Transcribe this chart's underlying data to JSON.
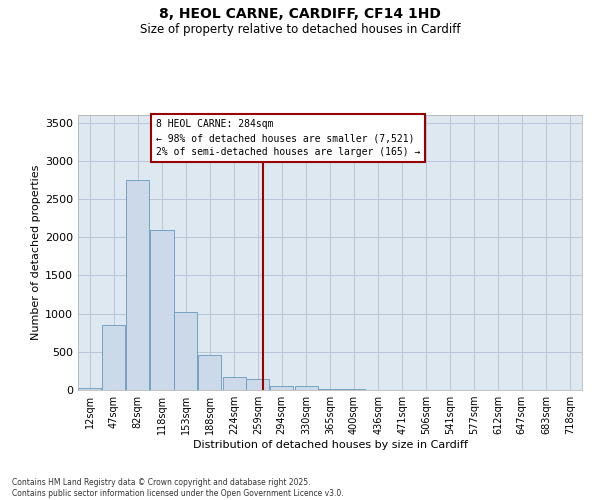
{
  "title_line1": "8, HEOL CARNE, CARDIFF, CF14 1HD",
  "title_line2": "Size of property relative to detached houses in Cardiff",
  "xlabel": "Distribution of detached houses by size in Cardiff",
  "ylabel": "Number of detached properties",
  "bar_color": "#ccd9e8",
  "bar_edge_color": "#6699bb",
  "grid_color": "#b8c8d8",
  "background_color": "#dde8f0",
  "vline_x": 284,
  "vline_color": "#990000",
  "annotation_text": "8 HEOL CARNE: 284sqm\n← 98% of detached houses are smaller (7,521)\n2% of semi-detached houses are larger (165) →",
  "annotation_box_facecolor": "#ffffff",
  "annotation_box_edgecolor": "#990000",
  "annotation_text_color": "#000000",
  "categories": [
    "12sqm",
    "47sqm",
    "82sqm",
    "118sqm",
    "153sqm",
    "188sqm",
    "224sqm",
    "259sqm",
    "294sqm",
    "330sqm",
    "365sqm",
    "400sqm",
    "436sqm",
    "471sqm",
    "506sqm",
    "541sqm",
    "577sqm",
    "612sqm",
    "647sqm",
    "683sqm",
    "718sqm"
  ],
  "bin_left_edges": [
    12,
    47,
    82,
    118,
    153,
    188,
    224,
    259,
    294,
    330,
    365,
    400,
    436,
    471,
    506,
    541,
    577,
    612,
    647,
    683,
    718
  ],
  "bin_width": 35,
  "values": [
    25,
    850,
    2750,
    2100,
    1020,
    460,
    175,
    150,
    55,
    50,
    18,
    12,
    0,
    6,
    0,
    0,
    0,
    0,
    0,
    0,
    0
  ],
  "ylim": [
    0,
    3600
  ],
  "yticks": [
    0,
    500,
    1000,
    1500,
    2000,
    2500,
    3000,
    3500
  ],
  "xlim_left": 12,
  "xlim_right": 753,
  "footnote": "Contains HM Land Registry data © Crown copyright and database right 2025.\nContains public sector information licensed under the Open Government Licence v3.0.",
  "fig_bg_color": "#ffffff"
}
